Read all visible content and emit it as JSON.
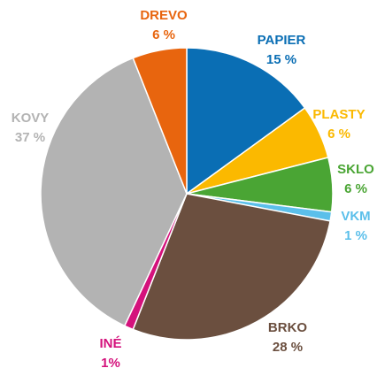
{
  "chart_data": {
    "type": "pie",
    "categories": [
      "PAPIER",
      "PLASTY",
      "SKLO",
      "VKM",
      "BRKO",
      "INÉ",
      "KOVY",
      "DREVO"
    ],
    "values": [
      15,
      6,
      6,
      1,
      28,
      1,
      37,
      6
    ],
    "value_labels": [
      "15 %",
      "6 %",
      "6 %",
      "1 %",
      "28 %",
      "1%",
      "37 %",
      "6 %"
    ],
    "colors": [
      "#0a6eb4",
      "#fbb900",
      "#4aa534",
      "#5bbfea",
      "#6b4f3f",
      "#d4127c",
      "#b3b3b3",
      "#e8650e"
    ]
  }
}
